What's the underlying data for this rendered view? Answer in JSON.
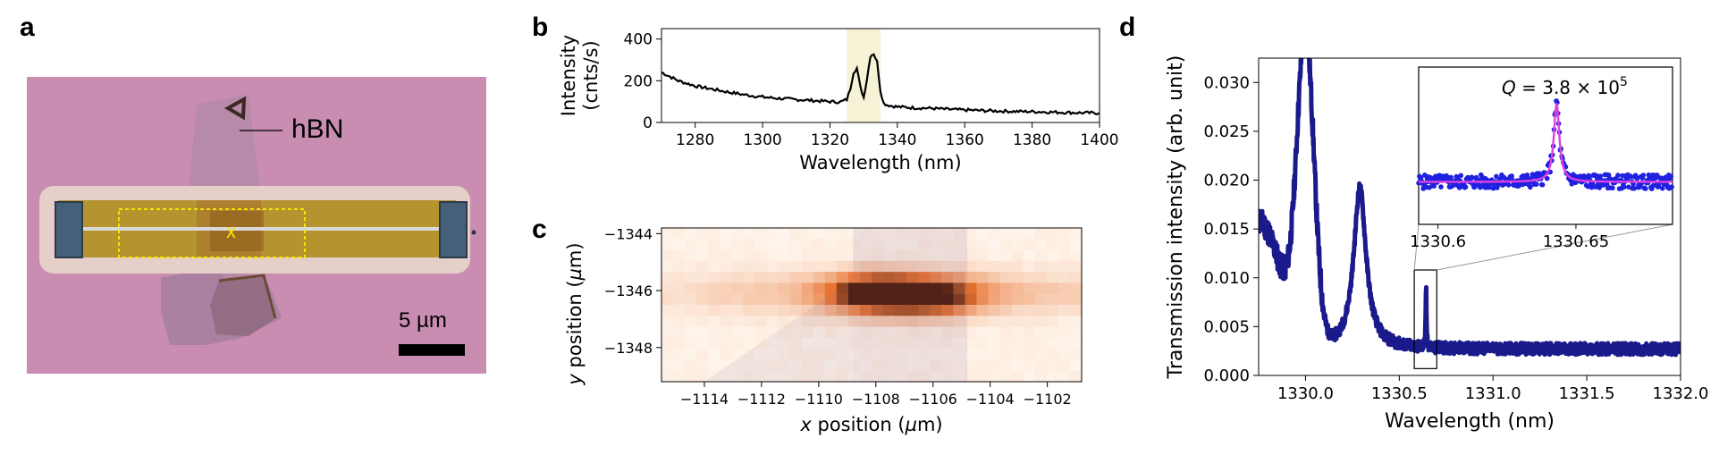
{
  "panels": {
    "a": {
      "letter": "a",
      "hbn_label": "hBN",
      "marker_label": "x",
      "scale_label": "5 µm"
    },
    "b": {
      "letter": "b"
    },
    "c": {
      "letter": "c"
    },
    "d": {
      "letter": "d"
    }
  },
  "chart_data": [
    {
      "id": "b",
      "type": "line",
      "xlabel": "Wavelength (nm)",
      "ylabel_line1": "Intensity",
      "ylabel_line2": "(cnts/s)",
      "xlim": [
        1270,
        1400
      ],
      "ylim": [
        0,
        450
      ],
      "xticks": [
        "1280",
        "1300",
        "1320",
        "1340",
        "1360",
        "1380",
        "1400"
      ],
      "xtick_values": [
        1280,
        1300,
        1320,
        1340,
        1360,
        1380,
        1400
      ],
      "yticks": [
        "0",
        "200",
        "400"
      ],
      "ytick_values": [
        0,
        200,
        400
      ],
      "highlight_range": [
        1325,
        1335
      ],
      "highlight_color": "#f5f2d6",
      "line_color": "#000000",
      "x": [
        1270,
        1275,
        1280,
        1285,
        1290,
        1295,
        1300,
        1305,
        1310,
        1315,
        1320,
        1323,
        1325,
        1326,
        1327,
        1328,
        1329,
        1330,
        1331,
        1332,
        1333,
        1334,
        1335,
        1336,
        1338,
        1340,
        1345,
        1350,
        1355,
        1360,
        1365,
        1370,
        1375,
        1380,
        1385,
        1390,
        1395,
        1400
      ],
      "values": [
        240,
        200,
        175,
        160,
        145,
        132,
        122,
        115,
        110,
        105,
        100,
        98,
        110,
        160,
        240,
        260,
        170,
        120,
        210,
        320,
        330,
        290,
        150,
        90,
        80,
        75,
        70,
        68,
        63,
        60,
        57,
        55,
        53,
        52,
        50,
        48,
        46,
        45
      ]
    },
    {
      "id": "c",
      "type": "heatmap",
      "xlabel": "x position (µm)",
      "xlabel_var": "x",
      "xlabel_rest": " position (",
      "xlabel_unit_mu": "µ",
      "xlabel_unit_rest": "m)",
      "ylabel_var": "y",
      "ylabel_rest": " position (",
      "ylabel_unit_mu": "µ",
      "ylabel_unit_rest": "m)",
      "xlim": [
        -1115.5,
        -1100.8
      ],
      "ylim": [
        -1349.2,
        -1343.8
      ],
      "xticks": [
        "−1114",
        "−1112",
        "−1110",
        "−1108",
        "−1106",
        "−1104",
        "−1102"
      ],
      "xtick_values": [
        -1114,
        -1112,
        -1110,
        -1108,
        -1106,
        -1104,
        -1102
      ],
      "yticks": [
        "−1344",
        "−1346",
        "−1348"
      ],
      "ytick_values": [
        -1344,
        -1346,
        -1348
      ],
      "colormap_low": "#fff5ec",
      "colormap_high": "#4a1a08",
      "peaks": [
        {
          "x": -1108,
          "y": -1346.1,
          "amp": 1.0
        },
        {
          "x": -1106,
          "y": -1346.2,
          "amp": 0.8
        }
      ]
    },
    {
      "id": "d",
      "type": "scatter",
      "xlabel": "Wavelength (nm)",
      "ylabel": "Transmission intensity (arb. unit)",
      "xlim": [
        1329.75,
        1332.0
      ],
      "ylim": [
        0.0,
        0.0325
      ],
      "xticks": [
        "1330.0",
        "1330.5",
        "1331.0",
        "1331.5",
        "1332.0"
      ],
      "xtick_values": [
        1330.0,
        1330.5,
        1331.0,
        1331.5,
        1332.0
      ],
      "yticks": [
        "0.000",
        "0.005",
        "0.010",
        "0.015",
        "0.020",
        "0.025",
        "0.030"
      ],
      "ytick_values": [
        0.0,
        0.005,
        0.01,
        0.015,
        0.02,
        0.025,
        0.03
      ],
      "marker_color": "#1a1a8c",
      "inset_box_range": [
        1330.58,
        1330.7
      ],
      "inset": {
        "annotation_q": "Q",
        "annotation_eq": " = 3.8 × 10",
        "annotation_exp": "5",
        "xlim": [
          1330.593,
          1330.685
        ],
        "ylim": [
          0.0,
          1.0
        ],
        "xticks": [
          "1330.6",
          "1330.65"
        ],
        "xtick_values": [
          1330.6,
          1330.65
        ],
        "center": 1330.643,
        "fit_color": "#e040e0",
        "marker_color": "#2020e0"
      }
    }
  ]
}
